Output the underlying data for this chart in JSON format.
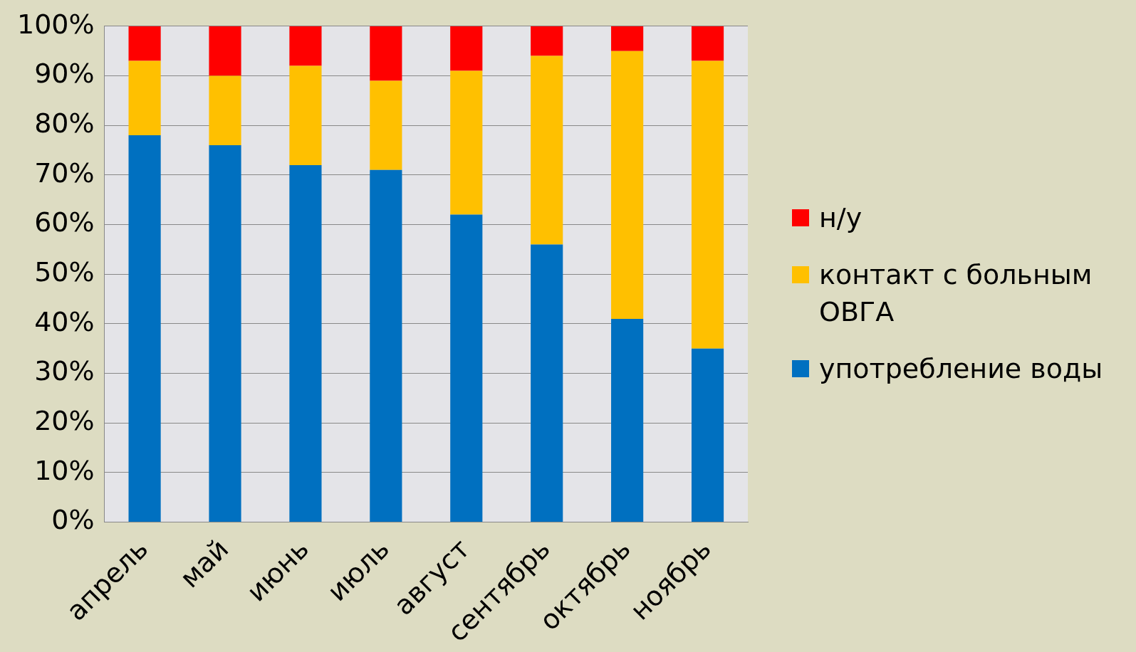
{
  "chart_data": {
    "type": "bar",
    "stacked": true,
    "categories": [
      "апрель",
      "май",
      "июнь",
      "июль",
      "август",
      "сентябрь",
      "октябрь",
      "ноябрь"
    ],
    "series": [
      {
        "name": "употребление воды",
        "color": "#0070c0",
        "values": [
          78,
          76,
          72,
          71,
          62,
          56,
          41,
          35
        ]
      },
      {
        "name": "контакт с больным ОВГА",
        "color": "#ffc000",
        "values": [
          15,
          14,
          20,
          18,
          29,
          38,
          54,
          58
        ]
      },
      {
        "name": "н/у",
        "color": "#ff0000",
        "values": [
          7,
          10,
          8,
          11,
          9,
          6,
          5,
          7
        ]
      }
    ],
    "ylim": [
      0,
      100
    ],
    "yticks": [
      {
        "value": 0,
        "label": "0%"
      },
      {
        "value": 10,
        "label": "10%"
      },
      {
        "value": 20,
        "label": "20%"
      },
      {
        "value": 30,
        "label": "30%"
      },
      {
        "value": 40,
        "label": "40%"
      },
      {
        "value": 50,
        "label": "50%"
      },
      {
        "value": 60,
        "label": "60%"
      },
      {
        "value": 70,
        "label": "70%"
      },
      {
        "value": 80,
        "label": "80%"
      },
      {
        "value": 90,
        "label": "90%"
      },
      {
        "value": 100,
        "label": "100%"
      }
    ],
    "grid": "y",
    "legend": "right"
  }
}
